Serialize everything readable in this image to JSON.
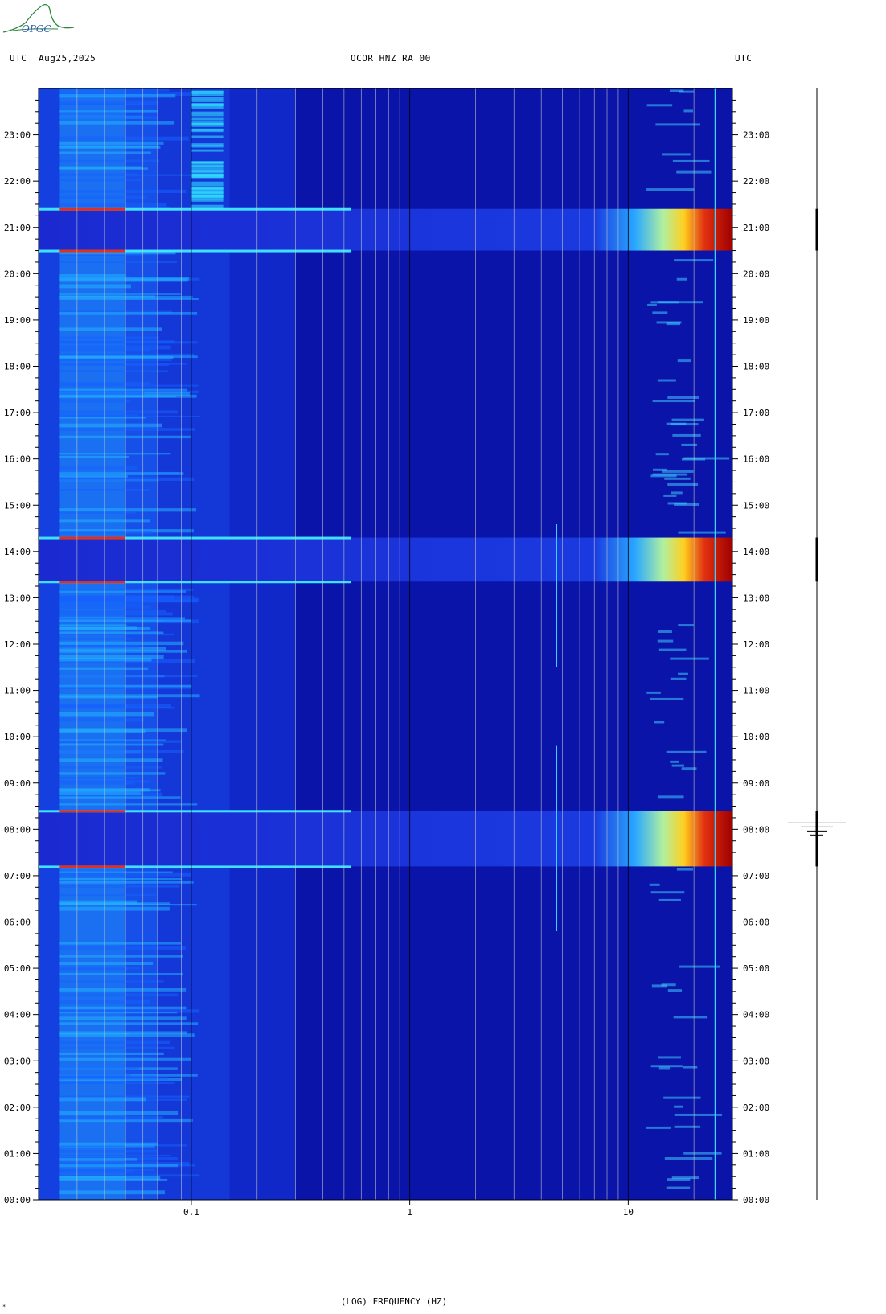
{
  "header": {
    "left_tz": "UTC",
    "date": "Aug25,2025",
    "station": "OCOR HNZ RA 00",
    "right_tz": "UTC"
  },
  "logo": {
    "text": "OPGC"
  },
  "footer_mark": "*",
  "colors": {
    "background": "#0a14a8",
    "quiet": "#1024c8",
    "mid": "#19a8ff",
    "high": "#ffe020",
    "peak": "#a00000",
    "gridline": "#c8c8c8"
  },
  "chart_data": {
    "type": "heatmap",
    "title": "OCOR HNZ RA 00",
    "xlabel": "(LOG) FREQUENCY (HZ)",
    "x_scale": "log",
    "xlim": [
      0.02,
      30
    ],
    "x_ticks": [
      {
        "value": 0.1,
        "label": "0.1"
      },
      {
        "value": 1,
        "label": "1"
      },
      {
        "value": 10,
        "label": "10"
      }
    ],
    "ylim_hours": [
      0,
      24
    ],
    "y_ticks_left": [
      "00:00",
      "01:00",
      "02:00",
      "03:00",
      "04:00",
      "05:00",
      "06:00",
      "07:00",
      "08:00",
      "09:00",
      "10:00",
      "11:00",
      "12:00",
      "13:00",
      "14:00",
      "15:00",
      "16:00",
      "17:00",
      "18:00",
      "19:00",
      "20:00",
      "21:00",
      "22:00",
      "23:00"
    ],
    "y_ticks_right": [
      "00:00",
      "01:00",
      "02:00",
      "03:00",
      "04:00",
      "05:00",
      "06:00",
      "07:00",
      "08:00",
      "09:00",
      "10:00",
      "11:00",
      "12:00",
      "13:00",
      "14:00",
      "15:00",
      "16:00",
      "17:00",
      "18:00",
      "19:00",
      "20:00",
      "21:00",
      "22:00",
      "23:00"
    ],
    "grid_freqs": [
      0.03,
      0.04,
      0.05,
      0.06,
      0.07,
      0.08,
      0.09,
      0.1,
      0.2,
      0.3,
      0.4,
      0.5,
      0.6,
      0.7,
      0.8,
      0.9,
      1,
      2,
      3,
      4,
      5,
      6,
      7,
      8,
      9,
      10,
      20
    ],
    "events": [
      {
        "start_hour": 7.2,
        "end_hour": 8.4
      },
      {
        "start_hour": 13.35,
        "end_hour": 14.3
      },
      {
        "start_hour": 20.5,
        "end_hour": 21.4
      }
    ]
  }
}
